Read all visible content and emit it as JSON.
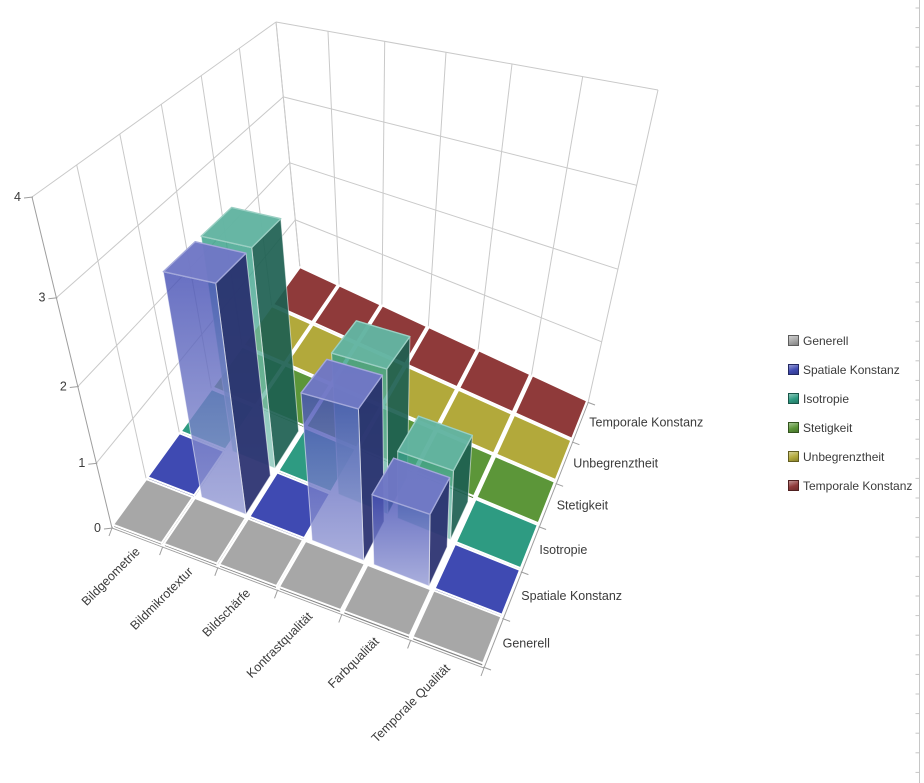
{
  "chart_data": {
    "type": "bar",
    "subtype": "3d-column",
    "title": "",
    "categories": [
      "Bildgeometrie",
      "Bildmikrotextur",
      "Bildschärfe",
      "Kontrastqualität",
      "Farbqualität",
      "Temporale Qualität"
    ],
    "series": [
      {
        "name": "Generell",
        "color": "#A7A7A7",
        "values": [
          0,
          0,
          0,
          0,
          0,
          0
        ]
      },
      {
        "name": "Spatiale Konstanz",
        "color": "#3F4AB2",
        "values": [
          0,
          3,
          0,
          2,
          1,
          0
        ]
      },
      {
        "name": "Isotropie",
        "color": "#2E9B82",
        "values": [
          0,
          3,
          0,
          2,
          1,
          0
        ]
      },
      {
        "name": "Stetigkeit",
        "color": "#5C9639",
        "values": [
          0,
          0,
          0,
          0,
          0,
          0
        ]
      },
      {
        "name": "Unbegrenztheit",
        "color": "#B2A93B",
        "values": [
          0,
          0,
          0,
          0,
          0,
          0
        ]
      },
      {
        "name": "Temporale Konstanz",
        "color": "#8F3A3A",
        "values": [
          0,
          0,
          0,
          0,
          0,
          0
        ]
      }
    ],
    "value_axis": {
      "min": 0,
      "max": 4,
      "ticks": [
        "0",
        "1",
        "2",
        "3",
        "4"
      ]
    },
    "legend_position": "right",
    "grid": true
  },
  "colors": {
    "background": "#FFFFFF",
    "gridline": "#C9C9C9",
    "axis": "#9E9E9E",
    "text": "#3B3B3B",
    "ruler": "#C6C6C6",
    "tile_border": "#FFFFFF"
  }
}
